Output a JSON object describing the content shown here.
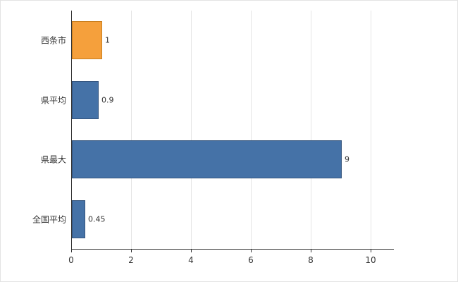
{
  "chart_data": {
    "type": "bar",
    "orientation": "horizontal",
    "title": "",
    "xlabel": "",
    "ylabel": "",
    "categories": [
      "西条市",
      "県平均",
      "県最大",
      "全国平均"
    ],
    "values": [
      1,
      0.9,
      9,
      0.45
    ],
    "value_labels": [
      "1",
      "0.9",
      "9",
      "0.45"
    ],
    "bar_colors": [
      "#f5a03c",
      "#4572a7",
      "#4572a7",
      "#4572a7"
    ],
    "bar_border_colors": [
      "#c97f1f",
      "#34547d",
      "#34547d",
      "#34547d"
    ],
    "xlim": [
      0,
      10.75
    ],
    "xticks": [
      0,
      2,
      4,
      6,
      8,
      10
    ],
    "xtick_labels": [
      "0",
      "2",
      "4",
      "6",
      "8",
      "10"
    ],
    "grid": true,
    "legend": "none"
  },
  "colors": {
    "axis": "#333333",
    "gridline": "#e5e5e5",
    "frame_border": "#e3e3e3",
    "background": "#ffffff"
  }
}
